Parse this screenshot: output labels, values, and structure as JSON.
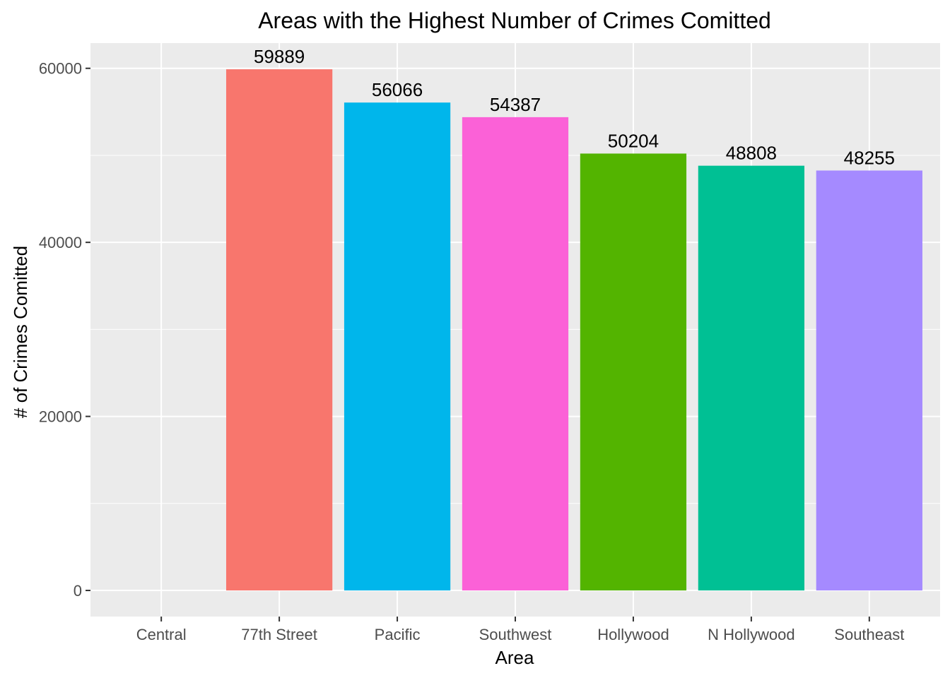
{
  "chart_data": {
    "type": "bar",
    "title": "Areas with the Highest Number of Crimes Comitted",
    "xlabel": "Area",
    "ylabel": "# of Crimes Comitted",
    "categories": [
      "Central",
      "77th Street",
      "Pacific",
      "Southwest",
      "Hollywood",
      "N Hollywood",
      "Southeast"
    ],
    "values": [
      null,
      59889,
      56066,
      54387,
      50204,
      48808,
      48255
    ],
    "data_labels": [
      "",
      "59889",
      "56066",
      "54387",
      "50204",
      "48808",
      "48255"
    ],
    "colors": [
      "#F8766D",
      "#F8766D",
      "#00B6EB",
      "#FB61D7",
      "#53B400",
      "#00C094",
      "#A58AFF"
    ],
    "y_ticks": [
      0,
      20000,
      40000,
      60000
    ],
    "y_tick_labels": [
      "0",
      "20000",
      "40000",
      "60000"
    ],
    "ylim": [
      -3000,
      62900
    ],
    "grid": true,
    "legend": "none",
    "background": "#EBEBEB"
  }
}
